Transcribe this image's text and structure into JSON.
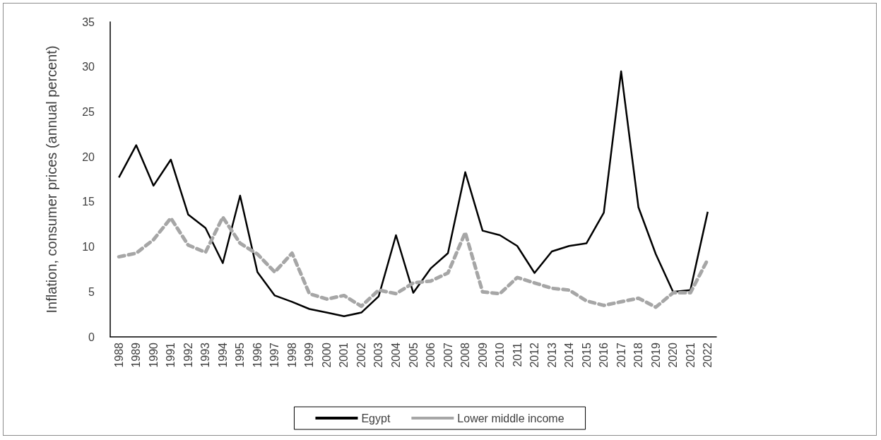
{
  "chart_data": {
    "type": "line",
    "ylabel": "Inflation, consumer prices (annual percent)",
    "categories": [
      "1988",
      "1989",
      "1990",
      "1991",
      "1992",
      "1993",
      "1994",
      "1995",
      "1996",
      "1997",
      "1998",
      "1999",
      "2000",
      "2001",
      "2002",
      "2003",
      "2004",
      "2005",
      "2006",
      "2007",
      "2008",
      "2009",
      "2010",
      "2011",
      "2012",
      "2013",
      "2014",
      "2015",
      "2016",
      "2017",
      "2018",
      "2019",
      "2020",
      "2021",
      "2022"
    ],
    "series": [
      {
        "name": "Egypt",
        "color": "#000000",
        "line_style": "solid",
        "values": [
          17.7,
          21.3,
          16.8,
          19.7,
          13.6,
          12.1,
          8.2,
          15.7,
          7.2,
          4.6,
          3.9,
          3.1,
          2.7,
          2.3,
          2.7,
          4.5,
          11.3,
          4.9,
          7.6,
          9.3,
          18.3,
          11.8,
          11.3,
          10.1,
          7.1,
          9.5,
          10.1,
          10.4,
          13.8,
          29.5,
          14.4,
          9.2,
          5.0,
          5.2,
          13.9
        ]
      },
      {
        "name": "Lower middle income",
        "color": "#a6a6a6",
        "line_style": "dashed",
        "values": [
          8.9,
          9.3,
          10.8,
          13.2,
          10.2,
          9.4,
          13.3,
          10.4,
          9.2,
          7.2,
          9.3,
          4.8,
          4.2,
          4.6,
          3.4,
          5.2,
          4.8,
          6.0,
          6.2,
          7.1,
          11.6,
          5.0,
          4.8,
          6.6,
          6.0,
          5.4,
          5.2,
          4.0,
          3.5,
          3.9,
          4.3,
          3.3,
          4.9,
          4.9,
          8.6
        ]
      }
    ],
    "ylim": [
      0,
      35
    ],
    "yticks": [
      0,
      5,
      10,
      15,
      20,
      25,
      30,
      35
    ],
    "grid": false,
    "legend": "bottom",
    "marker": "none"
  }
}
